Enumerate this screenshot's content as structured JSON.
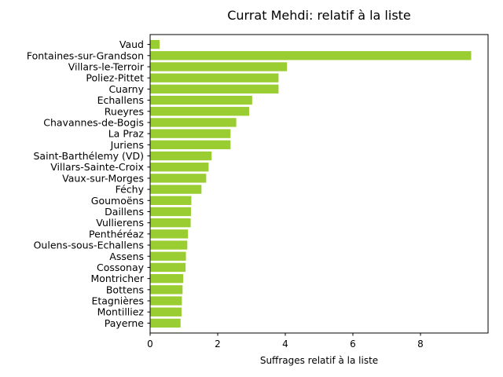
{
  "chart_data": {
    "type": "bar",
    "orientation": "horizontal",
    "title": "Currat Mehdi: relatif à la liste",
    "xlabel": "Suffrages relatif à la liste",
    "ylabel": "",
    "xlim": [
      0,
      10
    ],
    "xticks": [
      0,
      2,
      4,
      6,
      8
    ],
    "grid": false,
    "bar_color": "#9acd32",
    "categories": [
      "Vaud",
      "Fontaines-sur-Grandson",
      "Villars-le-Terroir",
      "Poliez-Pittet",
      "Cuarny",
      "Echallens",
      "Rueyres",
      "Chavannes-de-Bogis",
      "La Praz",
      "Juriens",
      "Saint-Barthélemy (VD)",
      "Villars-Sainte-Croix",
      "Vaux-sur-Morges",
      "Féchy",
      "Goumoëns",
      "Daillens",
      "Vullierens",
      "Penthéréaz",
      "Oulens-sous-Echallens",
      "Assens",
      "Cossonay",
      "Montricher",
      "Bottens",
      "Etagnières",
      "Montilliez",
      "Payerne"
    ],
    "values": [
      0.28,
      9.5,
      4.05,
      3.8,
      3.8,
      3.02,
      2.93,
      2.55,
      2.38,
      2.38,
      1.82,
      1.73,
      1.66,
      1.52,
      1.22,
      1.21,
      1.2,
      1.12,
      1.1,
      1.06,
      1.05,
      0.98,
      0.96,
      0.94,
      0.93,
      0.9
    ]
  }
}
